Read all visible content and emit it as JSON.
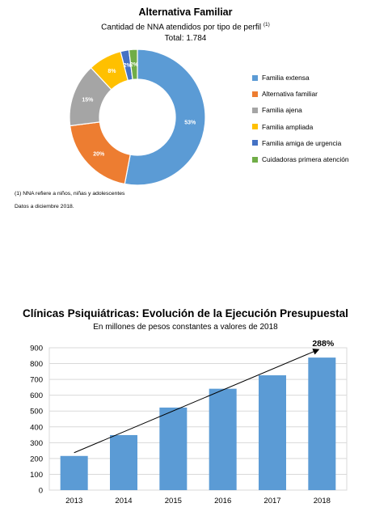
{
  "pie_chart": {
    "title": "Alternativa Familiar",
    "subtitle": "Cantidad de NNA atendidos por tipo de perfil",
    "subtitle_sup": "(1)",
    "total": "Total: 1.784",
    "footnote_1": "(1) NNA refiere a niños, niñas y adolescentes",
    "footnote_2": "Datos a diciembre 2018."
  },
  "bar_chart": {
    "title": "Clínicas Psiquiátricas: Evolución de la Ejecución Presupuestal",
    "subtitle": "En millones de pesos constantes a valores de 2018",
    "growth_label": "288%"
  },
  "chart_data": [
    {
      "type": "pie",
      "donut": true,
      "categories": [
        "Familia extensa",
        "Alternativa familiar",
        "Familia ajena",
        "Familia ampliada",
        "Familia amiga de urgencia",
        "Cuidadoras primera atención"
      ],
      "values": [
        53,
        20,
        15,
        8,
        2,
        2
      ],
      "data_labels": [
        "53%",
        "20%",
        "15%",
        "8%",
        "2%",
        "2%"
      ],
      "colors": [
        "#5b9bd5",
        "#ed7d31",
        "#a5a5a5",
        "#ffc000",
        "#4472c4",
        "#70ad47"
      ],
      "title": "Alternativa Familiar",
      "legend": "right"
    },
    {
      "type": "bar",
      "categories": [
        "2013",
        "2014",
        "2015",
        "2016",
        "2017",
        "2018"
      ],
      "values": [
        216,
        348,
        522,
        641,
        726,
        838
      ],
      "yticks": [
        "0",
        "100",
        "200",
        "300",
        "400",
        "500",
        "600",
        "700",
        "800",
        "900"
      ],
      "ylim": [
        0,
        900
      ],
      "grid": true,
      "color": "#5b9bd5",
      "trend_arrow": true,
      "annotation": "288%",
      "title": "Clínicas Psiquiátricas: Evolución de la Ejecución Presupuestal",
      "subtitle": "En millones de pesos constantes a valores de 2018"
    }
  ]
}
